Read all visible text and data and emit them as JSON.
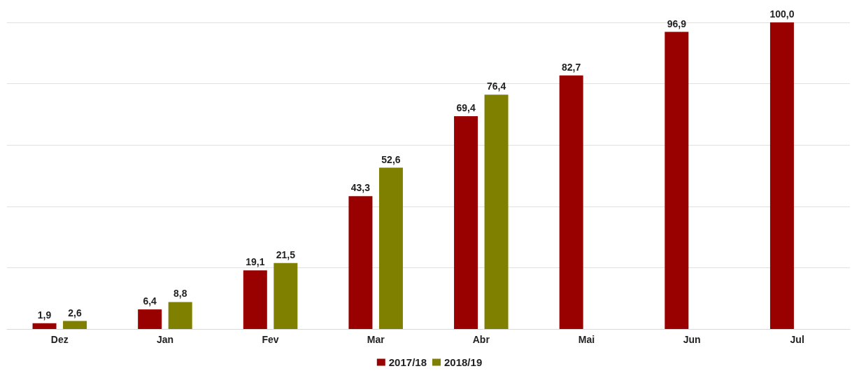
{
  "chart_data": {
    "type": "bar",
    "categories": [
      "Dez",
      "Jan",
      "Fev",
      "Mar",
      "Abr",
      "Mai",
      "Jun",
      "Jul"
    ],
    "series": [
      {
        "name": "2017/18",
        "color": "#990000",
        "values": [
          1.9,
          6.4,
          19.1,
          43.3,
          69.4,
          82.7,
          96.9,
          100.0
        ],
        "value_labels": [
          "1,9",
          "6,4",
          "19,1",
          "43,3",
          "69,4",
          "82,7",
          "96,9",
          "100,0"
        ]
      },
      {
        "name": "2018/19",
        "color": "#808000",
        "values": [
          2.6,
          8.8,
          21.5,
          52.6,
          76.4,
          null,
          null,
          null
        ],
        "value_labels": [
          "2,6",
          "8,8",
          "21,5",
          "52,6",
          "76,4",
          null,
          null,
          null
        ]
      }
    ],
    "tick_labels": "x",
    "grid": "y",
    "legend": "bottom"
  }
}
